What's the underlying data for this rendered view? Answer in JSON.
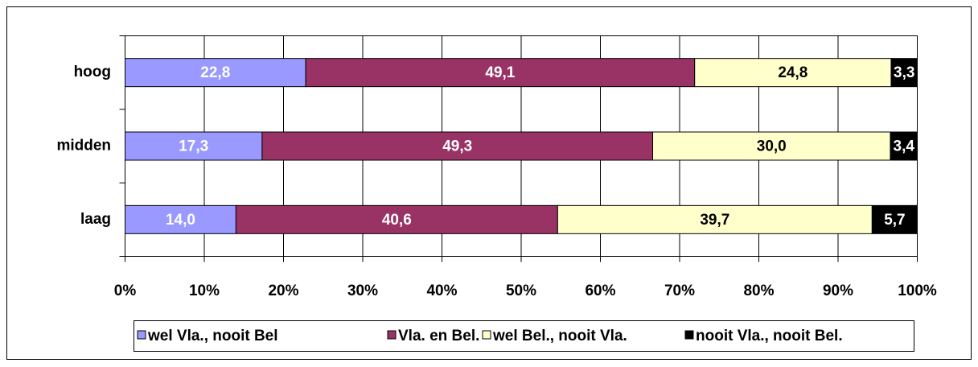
{
  "chart_data": {
    "type": "bar",
    "orientation": "horizontal",
    "stacked": true,
    "categories": [
      "hoog",
      "midden",
      "laag"
    ],
    "series": [
      {
        "name": "wel Vla., nooit Bel",
        "color": "#9999ff",
        "values": [
          22.8,
          17.3,
          14.0
        ],
        "value_labels": [
          "22,8",
          "17,3",
          "14,0"
        ]
      },
      {
        "name": "Vla. en Bel.",
        "color": "#993366",
        "values": [
          49.1,
          49.3,
          40.6
        ],
        "value_labels": [
          "49,1",
          "49,3",
          "40,6"
        ]
      },
      {
        "name": "wel Bel., nooit Vla.",
        "color": "#ffffcc",
        "values": [
          24.8,
          30.0,
          39.7
        ],
        "value_labels": [
          "24,8",
          "30,0",
          "39,7"
        ]
      },
      {
        "name": "nooit Vla., nooit Bel.",
        "color": "#000000",
        "values": [
          3.3,
          3.4,
          5.7
        ],
        "value_labels": [
          "3,3",
          "3,4",
          "5,7"
        ]
      }
    ],
    "xlim": [
      0,
      100
    ],
    "xticks": [
      {
        "value": 0,
        "label": "0%"
      },
      {
        "value": 10,
        "label": "10%"
      },
      {
        "value": 20,
        "label": "20%"
      },
      {
        "value": 30,
        "label": "30%"
      },
      {
        "value": 40,
        "label": "40%"
      },
      {
        "value": 50,
        "label": "50%"
      },
      {
        "value": 60,
        "label": "60%"
      },
      {
        "value": 70,
        "label": "70%"
      },
      {
        "value": 80,
        "label": "80%"
      },
      {
        "value": 90,
        "label": "90%"
      },
      {
        "value": 100,
        "label": "100%"
      }
    ],
    "grid": true,
    "legend": "bottom"
  }
}
